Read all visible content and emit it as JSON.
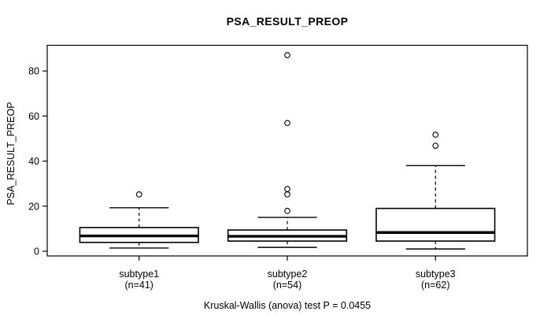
{
  "chart_data": {
    "type": "boxplot",
    "title": "PSA_RESULT_PREOP",
    "ylabel": "PSA_RESULT_PREOP",
    "xlabel": "",
    "annotation": "Kruskal-Wallis (anova) test P = 0.0455",
    "test_name": "Kruskal-Wallis (anova) test",
    "p_value": 0.0455,
    "yticks": [
      0,
      20,
      40,
      60,
      80
    ],
    "ylim": [
      -2.1,
      91.4
    ],
    "grid": false,
    "legend": "none",
    "categories": [
      "subtype1",
      "subtype2",
      "subtype3"
    ],
    "category_sublabels": [
      "(n=41)",
      "(n=54)",
      "(n=62)"
    ],
    "series": [
      {
        "name": "subtype1",
        "n": 41,
        "whisker_low": 1.4,
        "q1": 3.9,
        "median": 6.8,
        "q3": 10.5,
        "whisker_high": 19.3,
        "outliers": [
          25.2
        ]
      },
      {
        "name": "subtype2",
        "n": 54,
        "whisker_low": 1.7,
        "q1": 4.5,
        "median": 6.6,
        "q3": 9.4,
        "whisker_high": 15.0,
        "outliers": [
          17.9,
          25.2,
          27.6,
          56.9,
          87.0
        ]
      },
      {
        "name": "subtype3",
        "n": 62,
        "whisker_low": 1.0,
        "q1": 4.5,
        "median": 8.3,
        "q3": 19.0,
        "whisker_high": 38.0,
        "outliers": [
          46.8,
          51.7
        ]
      }
    ],
    "colors": {
      "line": "#000000",
      "box_fill": "#ffffff",
      "background": "#ffffff"
    }
  }
}
